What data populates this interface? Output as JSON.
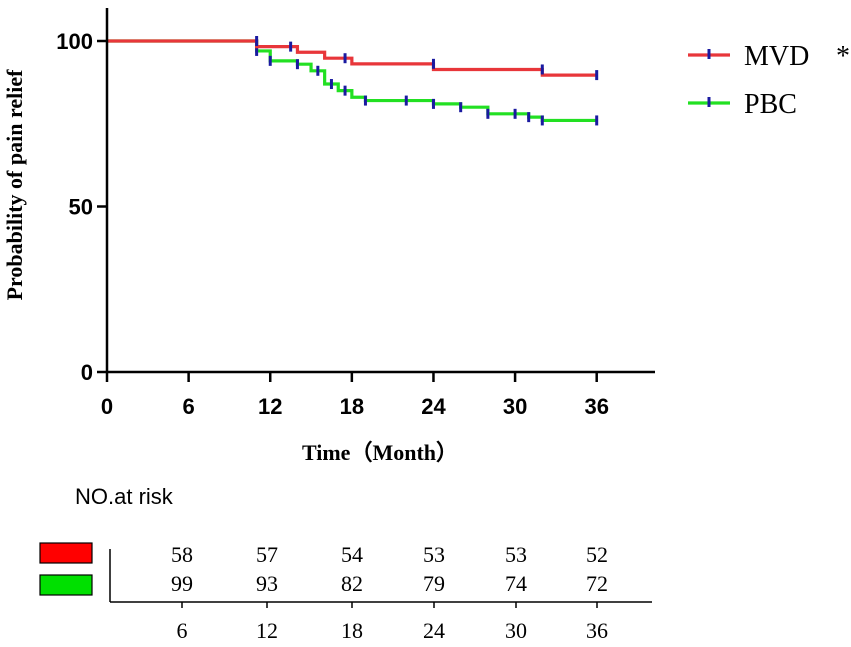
{
  "chart_data": {
    "type": "line",
    "title": "",
    "xlabel": "Time（Month）",
    "ylabel": "Probability of pain relief",
    "xlim": [
      0,
      40
    ],
    "ylim": [
      0,
      110
    ],
    "x_ticks": [
      "0",
      "6",
      "12",
      "18",
      "24",
      "30",
      "36"
    ],
    "x_tick_values": [
      0,
      6,
      12,
      18,
      24,
      30,
      36
    ],
    "y_ticks": [
      "0",
      "50",
      "100"
    ],
    "y_tick_values": [
      0,
      50,
      100
    ],
    "grid": false,
    "legend_position": "top-right",
    "series": [
      {
        "name": "MVD",
        "annotation": "*",
        "color": "#e8363a",
        "censor_color": "#1a1aa0",
        "steps": [
          [
            0,
            100
          ],
          [
            11,
            98.3
          ],
          [
            14,
            96.6
          ],
          [
            16,
            94.8
          ],
          [
            18,
            93.1
          ],
          [
            24,
            91.4
          ],
          [
            32,
            89.7
          ],
          [
            36,
            89.7
          ]
        ],
        "censored": [
          [
            11,
            100
          ],
          [
            13.5,
            98.3
          ],
          [
            17.5,
            94.8
          ],
          [
            24,
            93.1
          ],
          [
            32,
            91.4
          ],
          [
            36,
            89.7
          ]
        ]
      },
      {
        "name": "PBC",
        "color": "#22e022",
        "censor_color": "#1a1aa0",
        "steps": [
          [
            0,
            100
          ],
          [
            11,
            97
          ],
          [
            12,
            94
          ],
          [
            14,
            93
          ],
          [
            15,
            91
          ],
          [
            16,
            87
          ],
          [
            17,
            85
          ],
          [
            18,
            83
          ],
          [
            19,
            82
          ],
          [
            24,
            81
          ],
          [
            26,
            80
          ],
          [
            28,
            78
          ],
          [
            31,
            77
          ],
          [
            32,
            76
          ],
          [
            36,
            76
          ]
        ],
        "censored": [
          [
            11,
            97
          ],
          [
            12,
            94
          ],
          [
            14,
            93
          ],
          [
            15.5,
            91
          ],
          [
            16.5,
            87
          ],
          [
            17.5,
            85
          ],
          [
            19,
            82
          ],
          [
            22,
            82
          ],
          [
            24,
            81
          ],
          [
            26,
            80
          ],
          [
            28,
            78
          ],
          [
            30,
            78
          ],
          [
            31,
            77
          ],
          [
            32,
            76
          ],
          [
            36,
            76
          ]
        ]
      }
    ],
    "risk_table": {
      "title": "NO.at risk",
      "times": [
        "6",
        "12",
        "18",
        "24",
        "30",
        "36"
      ],
      "rows": [
        {
          "group": "MVD",
          "color": "#ff0000",
          "values": [
            "58",
            "57",
            "54",
            "53",
            "53",
            "52"
          ]
        },
        {
          "group": "PBC",
          "color": "#00e000",
          "values": [
            "99",
            "93",
            "82",
            "79",
            "74",
            "72"
          ]
        }
      ]
    }
  }
}
